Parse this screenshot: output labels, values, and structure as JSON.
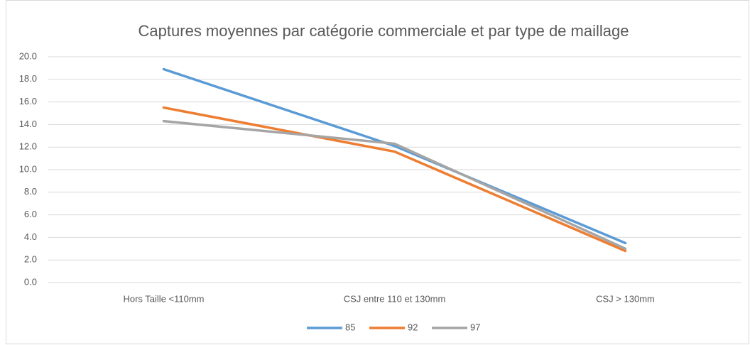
{
  "chart_data": {
    "type": "line",
    "title": "Captures moyennes par catégorie commerciale et par type de maillage",
    "categories": [
      "Hors Taille <110mm",
      "CSJ entre 110 et 130mm",
      "CSJ > 130mm"
    ],
    "series": [
      {
        "name": "85",
        "color": "#5b9bd5",
        "values": [
          18.9,
          12.1,
          3.5
        ]
      },
      {
        "name": "92",
        "color": "#ed7d31",
        "values": [
          15.5,
          11.6,
          2.8
        ]
      },
      {
        "name": "97",
        "color": "#a5a5a5",
        "values": [
          14.3,
          12.3,
          3.0
        ]
      }
    ],
    "ylim": [
      0,
      20
    ],
    "yticks": [
      {
        "value": 0,
        "label": "0.0"
      },
      {
        "value": 2,
        "label": "2.0"
      },
      {
        "value": 4,
        "label": "4.0"
      },
      {
        "value": 6,
        "label": "6.0"
      },
      {
        "value": 8,
        "label": "8.0"
      },
      {
        "value": 10,
        "label": "10.0"
      },
      {
        "value": 12,
        "label": "12.0"
      },
      {
        "value": 14,
        "label": "14.0"
      },
      {
        "value": 16,
        "label": "16.0"
      },
      {
        "value": 18,
        "label": "18.0"
      },
      {
        "value": 20,
        "label": "20.0"
      }
    ],
    "grid": true,
    "legend": "bottom"
  }
}
